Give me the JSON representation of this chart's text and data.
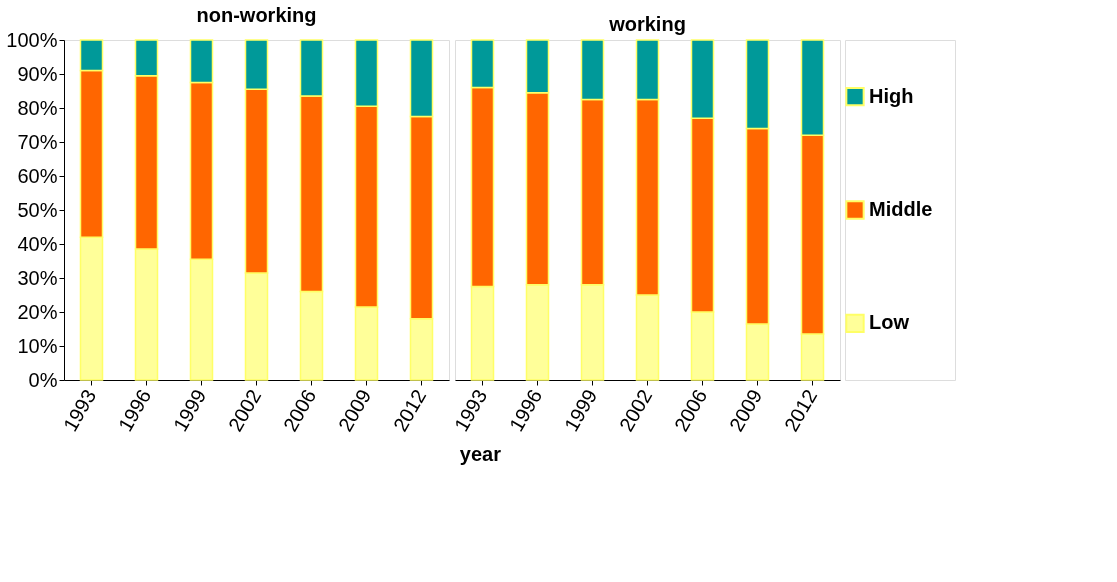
{
  "chart_data": [
    {
      "type": "bar",
      "title": "non-working",
      "xlabel": "year",
      "stacked": true,
      "categories": [
        "1993",
        "1996",
        "1999",
        "2002",
        "2006",
        "2009",
        "2012"
      ],
      "series": [
        {
          "name": "Low",
          "color": "#ffff99",
          "values": [
            42,
            38.5,
            35.5,
            31.5,
            26,
            21.5,
            18
          ]
        },
        {
          "name": "Middle",
          "color": "#ff6600",
          "values": [
            49,
            51,
            52,
            54,
            57.5,
            59,
            59.5
          ]
        },
        {
          "name": "High",
          "color": "#009999",
          "values": [
            9,
            10.5,
            12.5,
            14.5,
            16.5,
            19.5,
            22.5
          ]
        }
      ],
      "ylim": [
        0,
        100
      ],
      "yticks": [
        {
          "value": 0,
          "label": "0%"
        },
        {
          "value": 10,
          "label": "10%"
        },
        {
          "value": 20,
          "label": "20%"
        },
        {
          "value": 30,
          "label": "30%"
        },
        {
          "value": 40,
          "label": "40%"
        },
        {
          "value": 50,
          "label": "50%"
        },
        {
          "value": 60,
          "label": "60%"
        },
        {
          "value": 70,
          "label": "70%"
        },
        {
          "value": 80,
          "label": "80%"
        },
        {
          "value": 90,
          "label": "90%"
        },
        {
          "value": 100,
          "label": "100%"
        }
      ],
      "grid": false,
      "legend": "right"
    },
    {
      "type": "bar",
      "title": "working",
      "stacked": true,
      "categories": [
        "1993",
        "1996",
        "1999",
        "2002",
        "2006",
        "2009",
        "2012"
      ],
      "series": [
        {
          "name": "Low",
          "color": "#ffff99",
          "values": [
            27.5,
            28,
            28,
            25,
            20,
            16.5,
            13.5
          ]
        },
        {
          "name": "Middle",
          "color": "#ff6600",
          "values": [
            58.5,
            56.5,
            54.5,
            57.5,
            57,
            57.5,
            58.5
          ]
        },
        {
          "name": "High",
          "color": "#009999",
          "values": [
            14,
            15.5,
            17.5,
            17.5,
            23,
            26,
            28
          ]
        }
      ],
      "ylim": [
        0,
        100
      ],
      "tick_labels": "x",
      "grid": false,
      "legend": "right"
    }
  ]
}
